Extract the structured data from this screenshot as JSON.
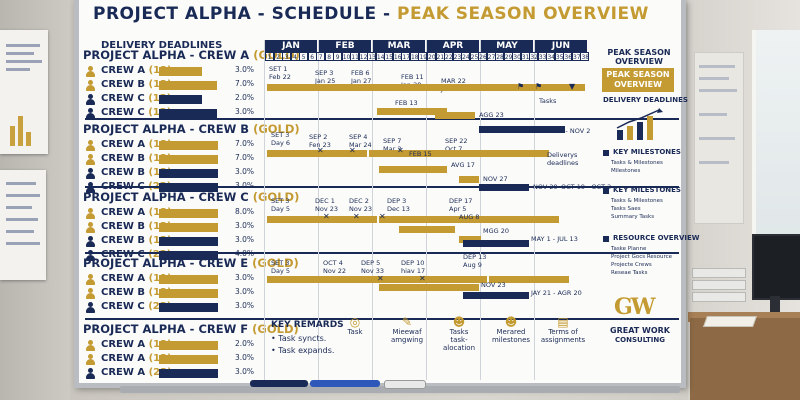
{
  "board": {
    "title_main": "PROJECT ALPHA - SCHEDULE - ",
    "title_accent": "PEAK SEASON OVERVIEW",
    "delivery_label": "DELIVERY DEADLINES",
    "months": [
      "JAN",
      "FEB",
      "MAR",
      "APR",
      "MAY",
      "JUN"
    ],
    "weeks": [
      "1",
      "2",
      "3",
      "4",
      "5",
      "6",
      "7",
      "8",
      "9",
      "10",
      "11",
      "12",
      "13",
      "14",
      "15",
      "16",
      "17",
      "18",
      "19",
      "20",
      "21",
      "22",
      "23",
      "24",
      "25",
      "26",
      "27",
      "28",
      "29",
      "30",
      "31",
      "32",
      "33",
      "34",
      "35",
      "36",
      "37",
      "38"
    ]
  },
  "crews": [
    {
      "title": "PROJECT ALPHA - CREW A",
      "tag": "(GOLD)",
      "rows": [
        {
          "label": "CREW A",
          "count": "(12)",
          "pct": "3.0%",
          "color": "#c49b32",
          "level": 0.58
        },
        {
          "label": "CREW B",
          "count": "(12)",
          "pct": "7.0%",
          "color": "#c49b32",
          "level": 0.78
        },
        {
          "label": "CREW C",
          "count": "(12)",
          "pct": "2.0%",
          "color": "#1a2a56",
          "level": 0.58
        },
        {
          "label": "CREW C",
          "count": "(12)",
          "pct": "3.0%",
          "color": "#1a2a56",
          "level": 0.78
        }
      ]
    },
    {
      "title": "PROJECT ALPHA - CREW B",
      "tag": "(GOLD)",
      "rows": [
        {
          "label": "CREW A",
          "count": "(12)",
          "pct": "7.0%",
          "color": "#c49b32",
          "level": 0.8
        },
        {
          "label": "CREW B",
          "count": "(12)",
          "pct": "7.0%",
          "color": "#c49b32",
          "level": 0.8
        },
        {
          "label": "CREW B",
          "count": "(12)",
          "pct": "3.0%",
          "color": "#1a2a56",
          "level": 0.8
        },
        {
          "label": "CREW C",
          "count": "(22)",
          "pct": "3.0%",
          "color": "#1a2a56",
          "level": 0.8
        }
      ]
    },
    {
      "title": "PROJECT ALPHA - CREW C",
      "tag": "(GOLD)",
      "rows": [
        {
          "label": "CREW A",
          "count": "(12)",
          "pct": "8.0%",
          "color": "#c49b32",
          "level": 0.8
        },
        {
          "label": "CREW B",
          "count": "(12)",
          "pct": "3.0%",
          "color": "#c49b32",
          "level": 0.8
        },
        {
          "label": "CREW B",
          "count": "(12)",
          "pct": "3.0%",
          "color": "#1a2a56",
          "level": 0.8
        },
        {
          "label": "CREW C",
          "count": "(22)",
          "pct": "4.0%",
          "color": "#1a2a56",
          "level": 0.8
        }
      ]
    },
    {
      "title": "PROJECT ALPHA - CREW E",
      "tag": "(GOLD)",
      "rows": [
        {
          "label": "CREW A",
          "count": "(11)",
          "pct": "3.0%",
          "color": "#c49b32",
          "level": 0.8
        },
        {
          "label": "CREW B",
          "count": "(12)",
          "pct": "3.0%",
          "color": "#c49b32",
          "level": 0.8
        },
        {
          "label": "CREW C",
          "count": "(23)",
          "pct": "3.0%",
          "color": "#1a2a56",
          "level": 0.8
        }
      ]
    },
    {
      "title": "PROJECT ALPHA - CREW F",
      "tag": "(GOLD)",
      "rows": [
        {
          "label": "CREW A",
          "count": "(12)",
          "pct": "2.0%",
          "color": "#c49b32",
          "level": 0.8
        },
        {
          "label": "CREW A",
          "count": "(12)",
          "pct": "3.0%",
          "color": "#c49b32",
          "level": 0.8
        },
        {
          "label": "CREW A",
          "count": "(23)",
          "pct": "3.0%",
          "color": "#1a2a56",
          "level": 0.8
        }
      ]
    }
  ],
  "timeline_labels": {
    "a1": "SET 1\nFeb 22",
    "a2": "SEP 3\nJan 25",
    "a3": "FEB 6\nJan 27",
    "a4": "FEB 11\nJan 28",
    "a5": "MAR 22\nJul 1",
    "a6": "FEB 13",
    "a7": "AGG 23",
    "a8": "Tasks",
    "a9": "SEP 1 - NOV 2",
    "b1": "SET 3\nDay 6",
    "b2": "SEP 2\nFen 23",
    "b3": "SEP 4\nMar 24",
    "b4": "SEP 7\nMar 2",
    "b5": "SEP 22\nOct 7",
    "b6": "FEB 15",
    "b7": "AVG 17",
    "b8": "NOV 27",
    "b9": "Deliverys\ndeadlines",
    "b10": "NOV 29",
    "b11": "OCT 19 - OCT 2",
    "c1": "SET 3\nDay 5",
    "c2": "DEC 1\nNov 23",
    "c3": "DEC 2\nNov 23",
    "c4": "DEP 3\nDec 13",
    "c5": "DEP 17\nApr 5",
    "c6": "AUG 8",
    "c7": "MGG 20",
    "c8": "MAY 1 - JUL 13",
    "d1": "SET 3\nDay 5",
    "d2": "OCT 4\nNov 22",
    "d3": "DEP 5\nNov 33",
    "d4": "DEP 10\nhiav 17",
    "d5": "DEP 13\nAug 9",
    "d6": "NOV 23",
    "d7": "JAY 21 - AGR 20"
  },
  "remarks": {
    "title": "KEY REMARDS",
    "items": [
      "• Task syncts.",
      "• Task expands."
    ],
    "legend": [
      {
        "icon": "target-icon",
        "text": "Task"
      },
      {
        "icon": "pen-icon",
        "text": "Mieewaf\namgwing"
      },
      {
        "icon": "people-icon",
        "text": "Tasks\ntask-\nalocation"
      },
      {
        "icon": "people-icon",
        "text": "Merared\nmilestones"
      },
      {
        "icon": "doc-icon",
        "text": "Terms of\nassignments"
      }
    ]
  },
  "right_panel": {
    "heading": "PEAK SEASON\nOVERVIEW",
    "band": "PEAK SEASON\nOVERVIEW",
    "delivery": "DELIVERY DEADLINES",
    "key1": "KEY MILESTONES",
    "key1_items": [
      "Tasks & Milestones",
      "Milestones"
    ],
    "key2": "KEY MILESTONES",
    "key2_items": [
      "Tasks & Milestones",
      "Tasks Saes",
      "Summary Tasks"
    ],
    "key3": "RESOURCE OVERVIEW",
    "key3_items": [
      "Taske Planne",
      "Project Gocs Resource",
      "Projecte Crews",
      "Reseae Tasks"
    ],
    "logo": "GW",
    "company1": "GREAT WORK",
    "company2": "CONSULTING"
  },
  "colors": {
    "navy": "#1a2a56",
    "gold": "#c49b32"
  }
}
